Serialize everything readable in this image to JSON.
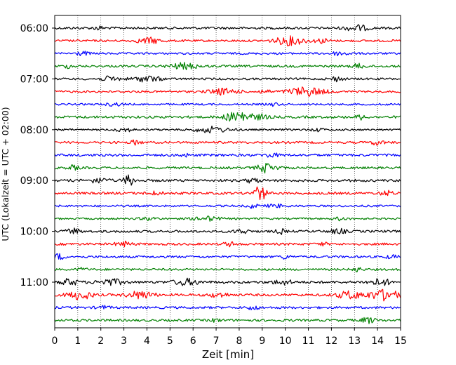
{
  "chart_data": {
    "type": "line",
    "xlabel": "Zeit  [min]",
    "ylabel": "UTC (Lokalzeit = UTC + 02:00)",
    "xlim": [
      0,
      15
    ],
    "xticks": [
      0,
      1,
      2,
      3,
      4,
      5,
      6,
      7,
      8,
      9,
      10,
      11,
      12,
      13,
      14,
      15
    ],
    "vertical_grid": "dotted",
    "row_interval_min": 15,
    "row_colors_cycle": [
      "#000000",
      "#ff0000",
      "#0000ff",
      "#008000"
    ],
    "yticks": [
      {
        "label": "06:00",
        "row": 0
      },
      {
        "label": "07:00",
        "row": 4
      },
      {
        "label": "08:00",
        "row": 8
      },
      {
        "label": "09:00",
        "row": 12
      },
      {
        "label": "10:00",
        "row": 16
      },
      {
        "label": "11:00",
        "row": 20
      }
    ],
    "traces": [
      {
        "start": "06:00",
        "color": "#000000"
      },
      {
        "start": "06:15",
        "color": "#ff0000"
      },
      {
        "start": "06:30",
        "color": "#0000ff"
      },
      {
        "start": "06:45",
        "color": "#008000"
      },
      {
        "start": "07:00",
        "color": "#000000"
      },
      {
        "start": "07:15",
        "color": "#ff0000"
      },
      {
        "start": "07:30",
        "color": "#0000ff"
      },
      {
        "start": "07:45",
        "color": "#008000"
      },
      {
        "start": "08:00",
        "color": "#000000"
      },
      {
        "start": "08:15",
        "color": "#ff0000"
      },
      {
        "start": "08:30",
        "color": "#0000ff"
      },
      {
        "start": "08:45",
        "color": "#008000"
      },
      {
        "start": "09:00",
        "color": "#000000"
      },
      {
        "start": "09:15",
        "color": "#ff0000"
      },
      {
        "start": "09:30",
        "color": "#0000ff"
      },
      {
        "start": "09:45",
        "color": "#008000"
      },
      {
        "start": "10:00",
        "color": "#000000"
      },
      {
        "start": "10:15",
        "color": "#ff0000"
      },
      {
        "start": "10:30",
        "color": "#0000ff"
      },
      {
        "start": "10:45",
        "color": "#008000"
      },
      {
        "start": "11:00",
        "color": "#000000"
      },
      {
        "start": "11:15",
        "color": "#ff0000"
      },
      {
        "start": "11:30",
        "color": "#0000ff"
      },
      {
        "start": "11:45",
        "color": "#008000"
      }
    ]
  }
}
